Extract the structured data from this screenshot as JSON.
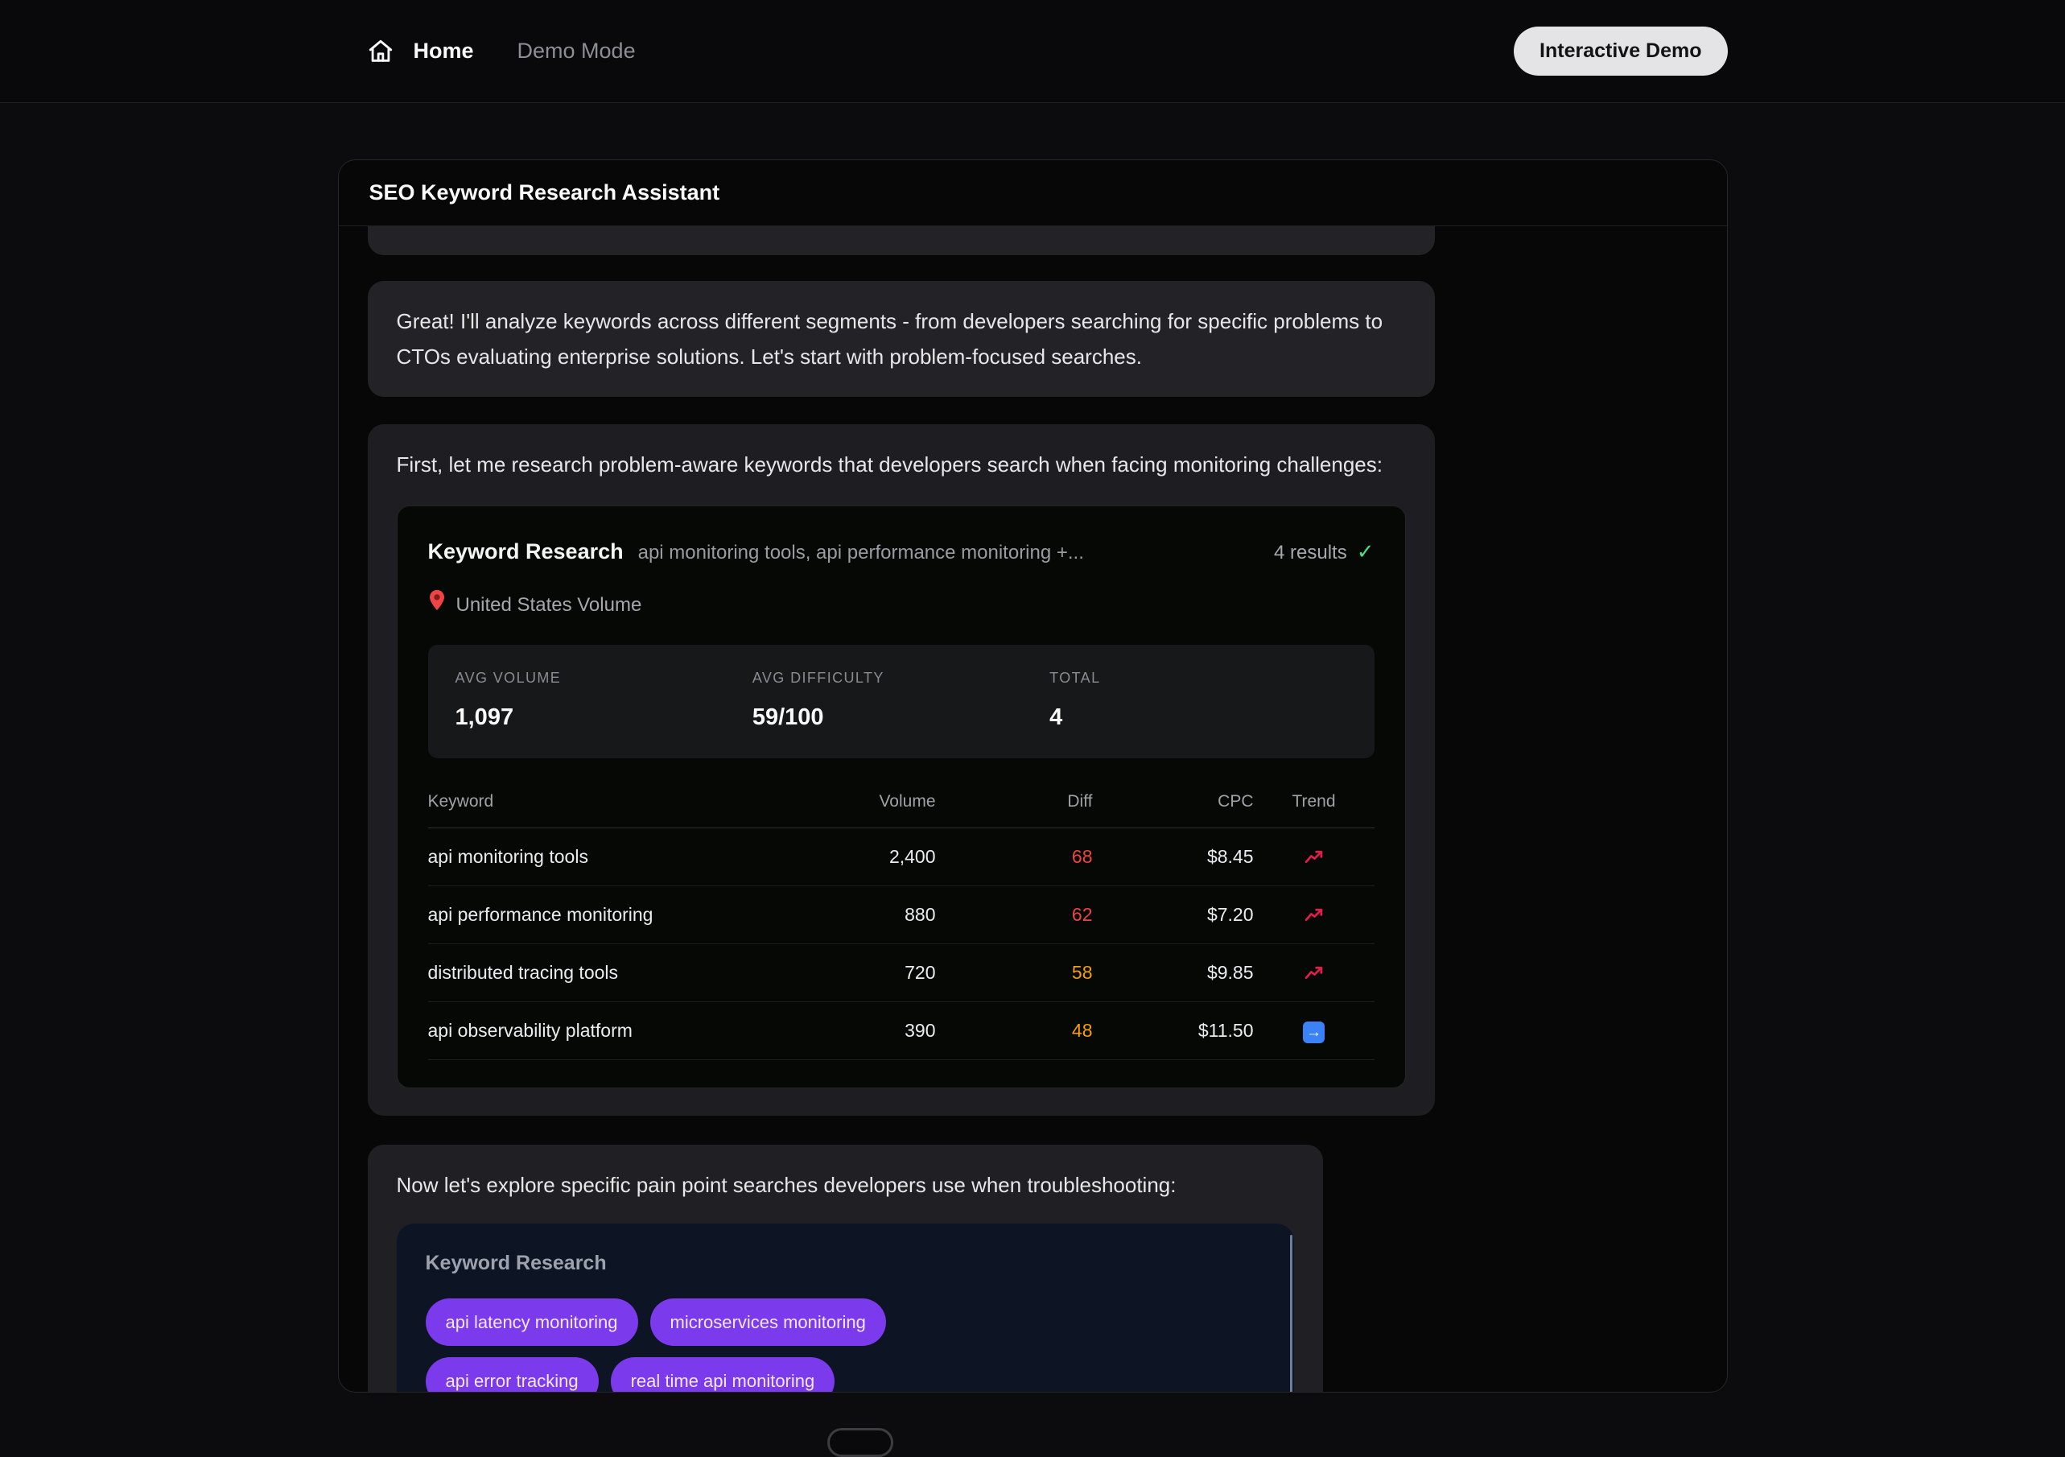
{
  "colors": {
    "accent_purple": "#7c3aed",
    "diff_high": "#ef4444",
    "diff_mid": "#f59e0b",
    "success_green": "#4ade80",
    "trend_blue": "#3b82f6",
    "trend_red": "#e11d48"
  },
  "navbar": {
    "home_label": "Home",
    "demo_mode_label": "Demo Mode",
    "interactive_demo_label": "Interactive Demo"
  },
  "card": {
    "title": "SEO Keyword Research Assistant"
  },
  "messages": {
    "intro": "Great! I'll analyze keywords across different segments - from developers searching for specific problems to CTOs evaluating enterprise solutions. Let's start with problem-focused searches.",
    "first_research": "First, let me research problem-aware keywords that developers search when facing monitoring challenges:",
    "pain_points": "Now let's explore specific pain point searches developers use when troubleshooting:"
  },
  "icons": {
    "check_mark": "✓",
    "flat_arrow": "→"
  },
  "keyword_research": {
    "title": "Keyword Research",
    "query_summary": "api monitoring tools, api performance monitoring +...",
    "results_count": "4 results",
    "location": "United States Volume",
    "stats": [
      {
        "label": "AVG VOLUME",
        "value": "1,097"
      },
      {
        "label": "AVG DIFFICULTY",
        "value": "59/100"
      },
      {
        "label": "TOTAL",
        "value": "4"
      }
    ],
    "table": {
      "headers": [
        "Keyword",
        "Volume",
        "Diff",
        "CPC",
        "Trend"
      ],
      "rows": [
        {
          "keyword": "api monitoring tools",
          "volume": "2,400",
          "diff": "68",
          "diff_color": "#ef4444",
          "cpc": "$8.45",
          "trend": "up"
        },
        {
          "keyword": "api performance monitoring",
          "volume": "880",
          "diff": "62",
          "diff_color": "#ef4444",
          "cpc": "$7.20",
          "trend": "up"
        },
        {
          "keyword": "distributed tracing tools",
          "volume": "720",
          "diff": "58",
          "diff_color": "#f59e0b",
          "cpc": "$9.85",
          "trend": "up"
        },
        {
          "keyword": "api observability platform",
          "volume": "390",
          "diff": "48",
          "diff_color": "#f59e0b",
          "cpc": "$11.50",
          "trend": "flat"
        }
      ]
    }
  },
  "pain_point_research": {
    "title": "Keyword Research",
    "tags": [
      "api latency monitoring",
      "microservices monitoring",
      "api error tracking",
      "real time api monitoring"
    ]
  }
}
